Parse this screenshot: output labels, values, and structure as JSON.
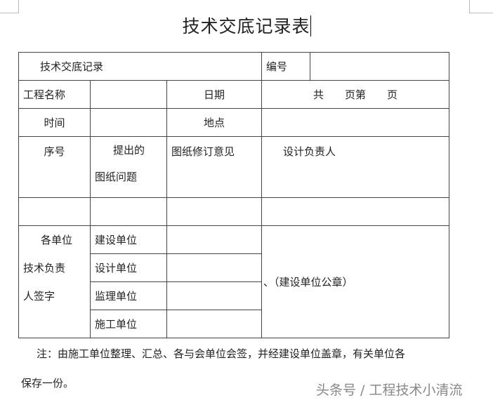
{
  "title": "技术交底记录表",
  "table": {
    "r1": {
      "label": "技术交底记录",
      "number_label": "编号"
    },
    "r2": {
      "project_name": "工程名称",
      "date": "日期",
      "pages": "共　　页第　　页"
    },
    "r3": {
      "time": "时间",
      "place": "地点"
    },
    "r4": {
      "seq": "序号",
      "question_l1": "提出的",
      "question_l2": "图纸问题",
      "revision": "图纸修订意见",
      "designer": "设计负责人"
    },
    "sign": {
      "label_l1": "各单位",
      "label_l2": "技术负责",
      "label_l3": "人签字",
      "units": [
        "建设单位",
        "设计单位",
        "监理单位",
        "施工单位"
      ],
      "seal": "、（建设单位公章）"
    }
  },
  "note_line1": "注：由施工单位整理、汇总、各与会单位会签，并经建设单位盖章，有关单位各",
  "note_line2": "保存一份。",
  "watermark": "头条号 / 工程技术小清流"
}
